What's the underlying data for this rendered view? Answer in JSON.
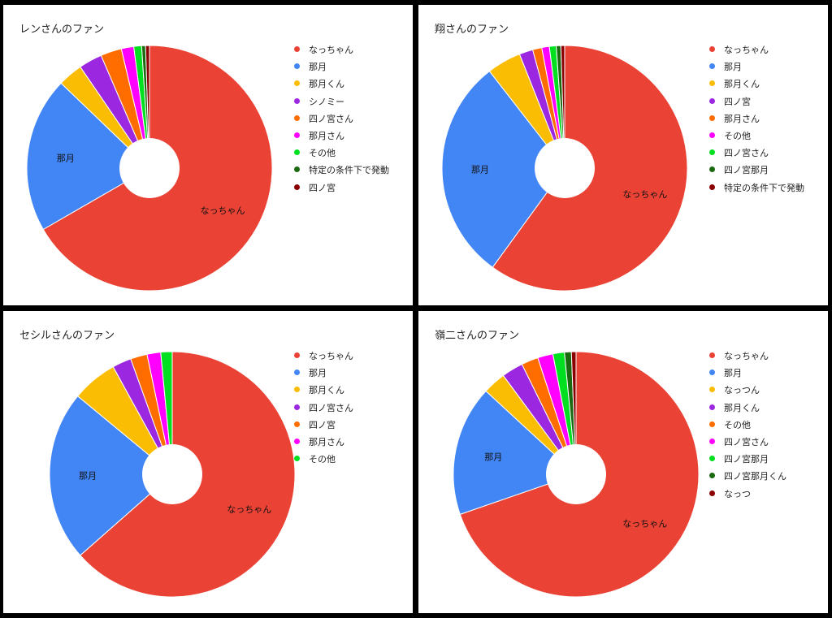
{
  "charts": [
    {
      "title": "レンさんのファン",
      "legend": [
        "なっちゃん",
        "那月",
        "那月くん",
        "シノミー",
        "四ノ宮さん",
        "那月さん",
        "その他",
        "特定の条件下で発動",
        "四ノ宮"
      ]
    },
    {
      "title": "翔さんのファン",
      "legend": [
        "なっちゃん",
        "那月",
        "那月くん",
        "四ノ宮",
        "那月さん",
        "その他",
        "四ノ宮さん",
        "四ノ宮那月",
        "特定の条件下で発動"
      ]
    },
    {
      "title": "セシルさんのファン",
      "legend": [
        "なっちゃん",
        "那月",
        "那月くん",
        "四ノ宮さん",
        "四ノ宮",
        "那月さん",
        "その他"
      ]
    },
    {
      "title": "嶺二さんのファン",
      "legend": [
        "なっちゃん",
        "那月",
        "なっつん",
        "那月くん",
        "その他",
        "四ノ宮さん",
        "四ノ宮那月",
        "四ノ宮那月くん",
        "なっつ"
      ]
    }
  ],
  "chart_data": [
    {
      "type": "pie",
      "title": "レンさんのファン",
      "categories": [
        "なっちゃん",
        "那月",
        "那月くん",
        "シノミー",
        "四ノ宮さん",
        "那月さん",
        "その他",
        "特定の条件下で発動",
        "四ノ宮"
      ],
      "values": [
        65.0,
        20.0,
        3.2,
        3.0,
        2.7,
        1.6,
        1.0,
        0.5,
        0.5
      ],
      "slice_labels": [
        "なっちゃん",
        "那月",
        "",
        "",
        "",
        "",
        "",
        "",
        ""
      ],
      "colors": [
        "#EA4335",
        "#4285F4",
        "#FBBC04",
        "#9C27E0",
        "#FF6D01",
        "#FF00FF",
        "#00E020",
        "#1B6A12",
        "#8B0000"
      ],
      "legend_position": "right"
    },
    {
      "type": "pie",
      "title": "翔さんのファン",
      "categories": [
        "なっちゃん",
        "那月",
        "那月くん",
        "四ノ宮",
        "那月さん",
        "その他",
        "四ノ宮さん",
        "四ノ宮那月",
        "特定の条件下で発動"
      ],
      "values": [
        60.0,
        29.5,
        4.5,
        1.8,
        1.2,
        1.0,
        0.9,
        0.6,
        0.5
      ],
      "slice_labels": [
        "なっちゃん",
        "那月",
        "",
        "",
        "",
        "",
        "",
        "",
        ""
      ],
      "colors": [
        "#EA4335",
        "#4285F4",
        "#FBBC04",
        "#9C27E0",
        "#FF6D01",
        "#FF00FF",
        "#00E020",
        "#1B6A12",
        "#8B0000"
      ],
      "legend_position": "right"
    },
    {
      "type": "pie",
      "title": "セシルさんのファン",
      "categories": [
        "なっちゃん",
        "那月",
        "那月くん",
        "四ノ宮さん",
        "四ノ宮",
        "那月さん",
        "その他"
      ],
      "values": [
        63.5,
        22.5,
        6.0,
        2.5,
        2.2,
        1.8,
        1.5
      ],
      "slice_labels": [
        "なっちゃん",
        "那月",
        "",
        "",
        "",
        "",
        ""
      ],
      "colors": [
        "#EA4335",
        "#4285F4",
        "#FBBC04",
        "#9C27E0",
        "#FF6D01",
        "#FF00FF",
        "#00E020"
      ],
      "legend_position": "right"
    },
    {
      "type": "pie",
      "title": "嶺二さんのファン",
      "categories": [
        "なっちゃん",
        "那月",
        "なっつん",
        "那月くん",
        "その他",
        "四ノ宮さん",
        "四ノ宮那月",
        "四ノ宮那月くん",
        "なっつ"
      ],
      "values": [
        69.0,
        17.0,
        3.0,
        2.8,
        2.2,
        2.0,
        1.5,
        0.9,
        0.6
      ],
      "slice_labels": [
        "なっちゃん",
        "那月",
        "",
        "",
        "",
        "",
        "",
        "",
        ""
      ],
      "colors": [
        "#EA4335",
        "#4285F4",
        "#FBBC04",
        "#9C27E0",
        "#FF6D01",
        "#FF00FF",
        "#00E020",
        "#1B6A12",
        "#8B0000"
      ],
      "legend_position": "right"
    }
  ]
}
